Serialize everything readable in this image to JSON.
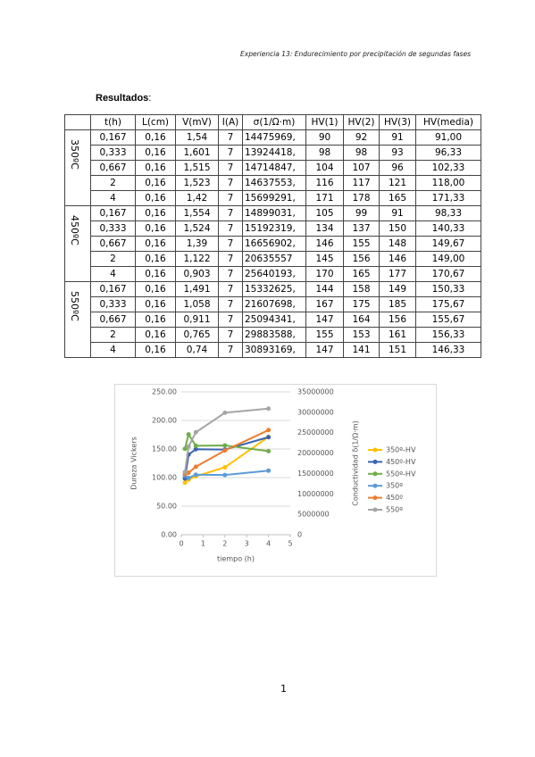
{
  "header": {
    "title": "Experiencia 13: Endurecimiento por precipitación de segundas fases"
  },
  "section": {
    "title": "Resultados",
    "colon": ":"
  },
  "table": {
    "header": [
      "t(h)",
      "L(cm)",
      "V(mV)",
      "I(A)",
      "σ(1/Ω·m)",
      "HV(1)",
      "HV(2)",
      "HV(3)",
      "HV(media)"
    ],
    "groups": [
      {
        "label": "350ºC",
        "rows": [
          [
            "0,167",
            "0,16",
            "1,54",
            "7",
            "14475969,",
            "90",
            "92",
            "91",
            "91,00"
          ],
          [
            "0,333",
            "0,16",
            "1,601",
            "7",
            "13924418,",
            "98",
            "98",
            "93",
            "96,33"
          ],
          [
            "0,667",
            "0,16",
            "1,515",
            "7",
            "14714847,",
            "104",
            "107",
            "96",
            "102,33"
          ],
          [
            "2",
            "0,16",
            "1,523",
            "7",
            "14637553,",
            "116",
            "117",
            "121",
            "118,00"
          ],
          [
            "4",
            "0,16",
            "1,42",
            "7",
            "15699291,",
            "171",
            "178",
            "165",
            "171,33"
          ]
        ]
      },
      {
        "label": "450ºC",
        "rows": [
          [
            "0,167",
            "0,16",
            "1,554",
            "7",
            "14899031,",
            "105",
            "99",
            "91",
            "98,33"
          ],
          [
            "0,333",
            "0,16",
            "1,524",
            "7",
            "15192319,",
            "134",
            "137",
            "150",
            "140,33"
          ],
          [
            "0,667",
            "0,16",
            "1,39",
            "7",
            "16656902,",
            "146",
            "155",
            "148",
            "149,67"
          ],
          [
            "2",
            "0,16",
            "1,122",
            "7",
            "20635557",
            "145",
            "156",
            "146",
            "149,00"
          ],
          [
            "4",
            "0,16",
            "0,903",
            "7",
            "25640193,",
            "170",
            "165",
            "177",
            "170,67"
          ]
        ]
      },
      {
        "label": "550ºC",
        "rows": [
          [
            "0,167",
            "0,16",
            "1,491",
            "7",
            "15332625,",
            "144",
            "158",
            "149",
            "150,33"
          ],
          [
            "0,333",
            "0,16",
            "1,058",
            "7",
            "21607698,",
            "167",
            "175",
            "185",
            "175,67"
          ],
          [
            "0,667",
            "0,16",
            "0,911",
            "7",
            "25094341,",
            "147",
            "164",
            "156",
            "155,67"
          ],
          [
            "2",
            "0,16",
            "0,765",
            "7",
            "29883588,",
            "155",
            "153",
            "161",
            "156,33"
          ],
          [
            "4",
            "0,16",
            "0,74",
            "7",
            "30893169,",
            "147",
            "141",
            "151",
            "146,33"
          ]
        ]
      }
    ]
  },
  "chart_data": {
    "type": "line",
    "x_label": "tiempo (h)",
    "y_label": "Dureza Vickers",
    "y2_label": "Conductividad δ(1/Ω·m)",
    "x": [
      0.167,
      0.333,
      0.667,
      2,
      4
    ],
    "xlim": [
      0,
      5
    ],
    "xticks": [
      0,
      1,
      2,
      3,
      4,
      5
    ],
    "ylim": [
      0,
      250
    ],
    "yticks": [
      {
        "value": 0,
        "label": "0.00"
      },
      {
        "value": 50,
        "label": "50.00"
      },
      {
        "value": 100,
        "label": "100.00"
      },
      {
        "value": 150,
        "label": "150.00"
      },
      {
        "value": 200,
        "label": "200.00"
      },
      {
        "value": 250,
        "label": "250.00"
      }
    ],
    "y2lim": [
      0,
      35000000
    ],
    "y2ticks": [
      0,
      5000000,
      10000000,
      15000000,
      20000000,
      25000000,
      30000000,
      35000000
    ],
    "legend": "right",
    "series": [
      {
        "name": "350º-HV",
        "color": "#ffc000",
        "values": [
          91,
          96.33,
          102.33,
          118,
          171.33
        ]
      },
      {
        "name": "450º-HV",
        "color": "#3a63b0",
        "values": [
          98.33,
          140.33,
          149.67,
          149,
          170.67
        ]
      },
      {
        "name": "550º-HV",
        "color": "#70ad47",
        "values": [
          150.33,
          175.67,
          155.67,
          156.33,
          146.33
        ]
      },
      {
        "name": "350º",
        "color": "#5b9bd5",
        "axis": "y2",
        "values": [
          14475969,
          13924418,
          14714847,
          14637553,
          15699291
        ]
      },
      {
        "name": "450º",
        "color": "#ed7d31",
        "axis": "y2",
        "values": [
          14899031,
          15192319,
          16656902,
          20635557,
          25640193
        ]
      },
      {
        "name": "550º",
        "color": "#a5a5a5",
        "axis": "y2",
        "values": [
          15332625,
          21607698,
          25094341,
          29883588,
          30893169
        ]
      }
    ]
  },
  "footer": {
    "page_number": "1"
  }
}
